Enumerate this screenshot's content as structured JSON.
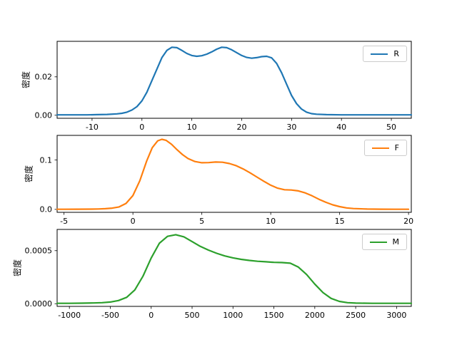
{
  "figure": {
    "background": "#ffffff"
  },
  "chart_data": [
    {
      "type": "line",
      "title": "",
      "xlabel": "",
      "ylabel": "密度",
      "legend": {
        "label": "R",
        "position": "upper right"
      },
      "grid": false,
      "xlim": [
        -17,
        54
      ],
      "ylim": [
        -0.0016,
        0.0385
      ],
      "x_ticks": [
        -10,
        0,
        10,
        20,
        30,
        40,
        50
      ],
      "x_tick_labels": [
        "-10",
        "0",
        "10",
        "20",
        "30",
        "40",
        "50"
      ],
      "y_ticks": [
        0.0,
        0.02
      ],
      "y_tick_labels": [
        "0.00",
        "0.02"
      ],
      "series": [
        {
          "name": "R",
          "color": "#1f77b4",
          "x": [
            -17,
            -14,
            -11,
            -9,
            -7,
            -5,
            -4,
            -3,
            -2,
            -1,
            0,
            1,
            2,
            3,
            4,
            5,
            6,
            7,
            8,
            9,
            10,
            11,
            12,
            13,
            14,
            15,
            16,
            17,
            18,
            19,
            20,
            21,
            22,
            23,
            24,
            25,
            26,
            27,
            28,
            29,
            30,
            31,
            32,
            33,
            34,
            35,
            37,
            40,
            44,
            48,
            52,
            54
          ],
          "y": [
            0.0002,
            0.0002,
            0.0002,
            0.0003,
            0.0004,
            0.0007,
            0.001,
            0.0016,
            0.0027,
            0.0045,
            0.0075,
            0.012,
            0.018,
            0.024,
            0.03,
            0.0338,
            0.0354,
            0.0352,
            0.0338,
            0.0322,
            0.0311,
            0.0307,
            0.031,
            0.0318,
            0.033,
            0.0344,
            0.0354,
            0.0352,
            0.0341,
            0.0326,
            0.0311,
            0.0301,
            0.0297,
            0.03,
            0.0305,
            0.0307,
            0.0299,
            0.027,
            0.0221,
            0.0161,
            0.0103,
            0.006,
            0.0032,
            0.0016,
            0.0008,
            0.0005,
            0.0003,
            0.0002,
            0.0002,
            0.0002,
            0.0002,
            0.0002
          ]
        }
      ]
    },
    {
      "type": "line",
      "title": "",
      "xlabel": "",
      "ylabel": "密度",
      "legend": {
        "label": "F",
        "position": "upper right"
      },
      "grid": false,
      "xlim": [
        -5.5,
        20.2
      ],
      "ylim": [
        -0.006,
        0.15
      ],
      "x_ticks": [
        -5,
        0,
        5,
        10,
        15,
        20
      ],
      "x_tick_labels": [
        "-5",
        "0",
        "5",
        "10",
        "15",
        "20"
      ],
      "y_ticks": [
        0.0,
        0.1
      ],
      "y_tick_labels": [
        "0.0",
        "0.1"
      ],
      "series": [
        {
          "name": "F",
          "color": "#ff7f0e",
          "x": [
            -5.5,
            -5,
            -4,
            -3,
            -2.5,
            -2,
            -1.5,
            -1,
            -0.5,
            0,
            0.5,
            1,
            1.4,
            1.8,
            2.1,
            2.4,
            2.8,
            3.2,
            3.6,
            4,
            4.5,
            5,
            5.5,
            6,
            6.5,
            7,
            7.5,
            8,
            8.5,
            9,
            9.5,
            10,
            10.5,
            11,
            11.5,
            12,
            12.5,
            13,
            13.5,
            14,
            14.5,
            15,
            15.5,
            16,
            17,
            18,
            19,
            20
          ],
          "y": [
            0.0002,
            0.0002,
            0.0003,
            0.0005,
            0.0008,
            0.0013,
            0.0025,
            0.005,
            0.012,
            0.028,
            0.058,
            0.098,
            0.125,
            0.139,
            0.142,
            0.14,
            0.132,
            0.121,
            0.111,
            0.103,
            0.097,
            0.0945,
            0.0948,
            0.096,
            0.0955,
            0.093,
            0.0885,
            0.082,
            0.074,
            0.0655,
            0.057,
            0.049,
            0.043,
            0.0398,
            0.0392,
            0.0375,
            0.0335,
            0.0275,
            0.0205,
            0.0143,
            0.0092,
            0.0055,
            0.003,
            0.0016,
            0.0006,
            0.0003,
            0.0002,
            0.0002
          ]
        }
      ]
    },
    {
      "type": "line",
      "title": "",
      "xlabel": "",
      "ylabel": "密度",
      "legend": {
        "label": "M",
        "position": "upper right"
      },
      "grid": false,
      "xlim": [
        -1150,
        3180
      ],
      "ylim": [
        -2.5e-05,
        0.0007
      ],
      "x_ticks": [
        -1000,
        -500,
        0,
        500,
        1000,
        1500,
        2000,
        2500,
        3000
      ],
      "x_tick_labels": [
        "-1000",
        "-500",
        "0",
        "500",
        "1000",
        "1500",
        "2000",
        "2500",
        "3000"
      ],
      "y_ticks": [
        0.0,
        0.0005
      ],
      "y_tick_labels": [
        "0.0000",
        "0.0005"
      ],
      "series": [
        {
          "name": "M",
          "color": "#2ca02c",
          "x": [
            -1150,
            -1000,
            -850,
            -700,
            -600,
            -500,
            -400,
            -300,
            -200,
            -100,
            0,
            100,
            200,
            300,
            400,
            500,
            600,
            700,
            800,
            900,
            1000,
            1100,
            1200,
            1300,
            1400,
            1500,
            1600,
            1700,
            1800,
            1900,
            2000,
            2100,
            2200,
            2300,
            2400,
            2500,
            2700,
            3000,
            3180
          ],
          "y": [
            4e-06,
            4e-06,
            5e-06,
            7e-06,
            1e-05,
            1.6e-05,
            3e-05,
            6e-05,
            0.00013,
            0.00026,
            0.00043,
            0.00057,
            0.000635,
            0.00065,
            0.00063,
            0.000585,
            0.00054,
            0.000505,
            0.000475,
            0.00045,
            0.000432,
            0.000418,
            0.000408,
            0.0004,
            0.000395,
            0.00039,
            0.000388,
            0.000382,
            0.000345,
            0.000275,
            0.000185,
            0.000105,
            5e-05,
            2.2e-05,
            1e-05,
            6e-06,
            4e-06,
            4e-06,
            4e-06
          ]
        }
      ]
    }
  ]
}
